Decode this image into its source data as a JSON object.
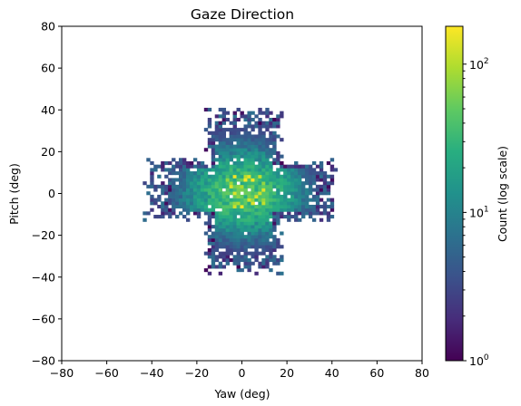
{
  "chart_data": {
    "type": "heatmap",
    "title": "Gaze Direction",
    "xlabel": "Yaw (deg)",
    "ylabel": "Pitch (deg)",
    "xlim": [
      -80,
      80
    ],
    "ylim": [
      -80,
      80
    ],
    "xticks": [
      "−80",
      "−60",
      "−40",
      "−20",
      "0",
      "20",
      "40",
      "60",
      "80"
    ],
    "yticks": [
      "−80",
      "−60",
      "−40",
      "−20",
      "0",
      "20",
      "40",
      "60",
      "80"
    ],
    "xtick_values": [
      -80,
      -60,
      -40,
      -20,
      0,
      20,
      40,
      60,
      80
    ],
    "ytick_values": [
      -80,
      -60,
      -40,
      -20,
      0,
      20,
      40,
      60,
      80
    ],
    "grid": false,
    "bin_size_deg": 1.6,
    "colormap": "viridis",
    "colorbar": {
      "label": "Count (log scale)",
      "scale": "log",
      "range": [
        1,
        180
      ],
      "ticks": [
        {
          "value": 1,
          "base": "10",
          "exp": "0"
        },
        {
          "value": 10,
          "base": "10",
          "exp": "1"
        },
        {
          "value": 100,
          "base": "10",
          "exp": "2"
        }
      ]
    },
    "distribution": {
      "shape": "cross-shaped cluster centered at (0, 0)",
      "horizontal_arm": {
        "yaw": [
          -42,
          40
        ],
        "pitch": [
          -12,
          14
        ]
      },
      "vertical_arm": {
        "yaw": [
          -16,
          16
        ],
        "pitch": [
          -37,
          38
        ]
      },
      "peak_count": 180,
      "typical_center_count": 30
    }
  }
}
